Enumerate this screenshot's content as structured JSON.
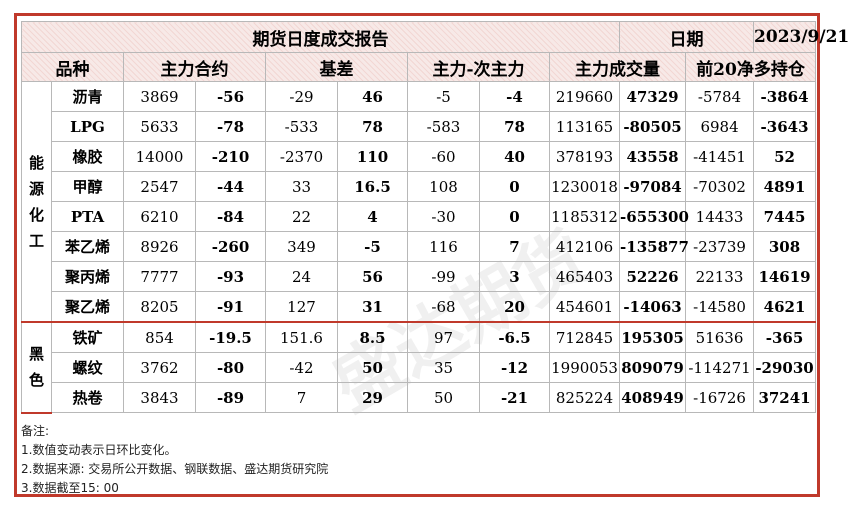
{
  "title": "期货日度成交报告",
  "date_label": "日期",
  "date_value": "2023/9/21",
  "headers": {
    "variety": "品种",
    "main_contract": "主力合约",
    "basis": "基差",
    "spread": "主力-次主力",
    "volume": "主力成交量",
    "top20": "前20净多持仓"
  },
  "categories": [
    {
      "name": "能源化工",
      "rows": [
        {
          "product": "沥青",
          "main": "3869",
          "main_chg": "-56",
          "main_dir": "down",
          "basis": "-29",
          "basis_chg": "46",
          "basis_dir": "up",
          "spread": "-5",
          "spread_chg": "-4",
          "spread_dir": "down",
          "volume": "219660",
          "volume_chg": "47329",
          "volume_dir": "up",
          "top20": "-5784",
          "top20_chg": "-3864",
          "top20_dir": "down"
        },
        {
          "product": "LPG",
          "main": "5633",
          "main_chg": "-78",
          "main_dir": "down",
          "basis": "-533",
          "basis_chg": "78",
          "basis_dir": "up",
          "spread": "-583",
          "spread_chg": "78",
          "spread_dir": "up",
          "volume": "113165",
          "volume_chg": "-80505",
          "volume_dir": "down",
          "top20": "6984",
          "top20_chg": "-3643",
          "top20_dir": "down"
        },
        {
          "product": "橡胶",
          "main": "14000",
          "main_chg": "-210",
          "main_dir": "down",
          "basis": "-2370",
          "basis_chg": "110",
          "basis_dir": "up",
          "spread": "-60",
          "spread_chg": "40",
          "spread_dir": "up",
          "volume": "378193",
          "volume_chg": "43558",
          "volume_dir": "up",
          "top20": "-41451",
          "top20_chg": "52",
          "top20_dir": "up"
        },
        {
          "product": "甲醇",
          "main": "2547",
          "main_chg": "-44",
          "main_dir": "down",
          "basis": "33",
          "basis_chg": "16.5",
          "basis_dir": "up",
          "spread": "108",
          "spread_chg": "0",
          "spread_dir": "zero",
          "volume": "1230018",
          "volume_chg": "-97084",
          "volume_dir": "down",
          "top20": "-70302",
          "top20_chg": "4891",
          "top20_dir": "up"
        },
        {
          "product": "PTA",
          "main": "6210",
          "main_chg": "-84",
          "main_dir": "down",
          "basis": "22",
          "basis_chg": "4",
          "basis_dir": "up",
          "spread": "-30",
          "spread_chg": "0",
          "spread_dir": "zero",
          "volume": "1185312",
          "volume_chg": "-655300",
          "volume_dir": "down",
          "top20": "14433",
          "top20_chg": "7445",
          "top20_dir": "up"
        },
        {
          "product": "苯乙烯",
          "main": "8926",
          "main_chg": "-260",
          "main_dir": "down",
          "basis": "349",
          "basis_chg": "-5",
          "basis_dir": "down",
          "spread": "116",
          "spread_chg": "7",
          "spread_dir": "up",
          "volume": "412106",
          "volume_chg": "-135877",
          "volume_dir": "down",
          "top20": "-23739",
          "top20_chg": "308",
          "top20_dir": "up"
        },
        {
          "product": "聚丙烯",
          "main": "7777",
          "main_chg": "-93",
          "main_dir": "down",
          "basis": "24",
          "basis_chg": "56",
          "basis_dir": "up",
          "spread": "-99",
          "spread_chg": "3",
          "spread_dir": "up",
          "volume": "465403",
          "volume_chg": "52226",
          "volume_dir": "up",
          "top20": "22133",
          "top20_chg": "14619",
          "top20_dir": "up"
        },
        {
          "product": "聚乙烯",
          "main": "8205",
          "main_chg": "-91",
          "main_dir": "down",
          "basis": "127",
          "basis_chg": "31",
          "basis_dir": "up",
          "spread": "-68",
          "spread_chg": "20",
          "spread_dir": "up",
          "volume": "454601",
          "volume_chg": "-14063",
          "volume_dir": "down",
          "top20": "-14580",
          "top20_chg": "4621",
          "top20_dir": "up"
        }
      ]
    },
    {
      "name": "黑色",
      "rows": [
        {
          "product": "铁矿",
          "main": "854",
          "main_chg": "-19.5",
          "main_dir": "down",
          "basis": "151.6",
          "basis_chg": "8.5",
          "basis_dir": "up",
          "spread": "97",
          "spread_chg": "-6.5",
          "spread_dir": "down",
          "volume": "712845",
          "volume_chg": "195305",
          "volume_dir": "up",
          "top20": "51636",
          "top20_chg": "-365",
          "top20_dir": "down"
        },
        {
          "product": "螺纹",
          "main": "3762",
          "main_chg": "-80",
          "main_dir": "down",
          "basis": "-42",
          "basis_chg": "50",
          "basis_dir": "up",
          "spread": "35",
          "spread_chg": "-12",
          "spread_dir": "down",
          "volume": "1990053",
          "volume_chg": "809079",
          "volume_dir": "up",
          "top20": "-114271",
          "top20_chg": "-29030",
          "top20_dir": "down"
        },
        {
          "product": "热卷",
          "main": "3843",
          "main_chg": "-89",
          "main_dir": "down",
          "basis": "7",
          "basis_chg": "29",
          "basis_dir": "up",
          "spread": "50",
          "spread_chg": "-21",
          "spread_dir": "down",
          "volume": "825224",
          "volume_chg": "408949",
          "volume_dir": "up",
          "top20": "-16726",
          "top20_chg": "37241",
          "top20_dir": "up"
        }
      ]
    }
  ],
  "notes": {
    "heading": "备注:",
    "lines": [
      "1.数值变动表示日环比变化。",
      "2.数据来源: 交易所公开数据、钢联数据、盛达期货研究院",
      "3.数据截至15:  00"
    ]
  },
  "watermark": "盛达期货"
}
